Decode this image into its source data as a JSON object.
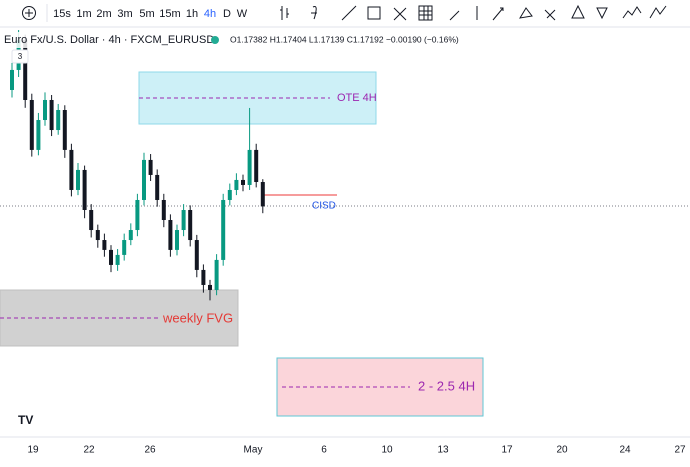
{
  "toolbar": {
    "timeframes": [
      "15s",
      "1m",
      "2m",
      "3m",
      "5m",
      "15m",
      "1h",
      "4h",
      "D",
      "W"
    ],
    "active": "4h"
  },
  "legend": {
    "symbol": "Euro Fx/U.S. Dollar · 4h · FXCM_EURUSD",
    "ohlc": "O1.17382 H1.17404 L1.17139 C1.17192 −0.00190 (−0.16%)",
    "badge": "3"
  },
  "chart_data": {
    "type": "candlestick",
    "open": [
      1.18099,
      1.18255,
      1.18488,
      1.18021,
      1.17632,
      1.17865,
      1.18021,
      1.17787,
      1.17943,
      1.17632,
      1.1732,
      1.17476,
      1.17164,
      1.17008,
      1.1693,
      1.16853,
      1.16736,
      1.16814,
      1.1693,
      1.17008,
      1.17242,
      1.17554,
      1.17437,
      1.17242,
      1.17086,
      1.16853,
      1.17008,
      1.17164,
      1.1693,
      1.16697,
      1.1658,
      1.16541,
      1.16775,
      1.17242,
      1.1732,
      1.17398,
      1.17359,
      1.17632,
      1.17382
    ],
    "high": [
      1.1831,
      1.18566,
      1.1853,
      1.1807,
      1.1792,
      1.1808,
      1.1806,
      1.1799,
      1.1798,
      1.1768,
      1.1753,
      1.1751,
      1.1721,
      1.1705,
      1.1698,
      1.1689,
      1.1686,
      1.1698,
      1.1706,
      1.1729,
      1.1761,
      1.176,
      1.1748,
      1.1729,
      1.1713,
      1.1705,
      1.1721,
      1.172,
      1.1697,
      1.1674,
      1.1662,
      1.1682,
      1.1729,
      1.1737,
      1.1745,
      1.1744,
      1.17959,
      1.1768,
      1.17404
    ],
    "low": [
      1.1804,
      1.182,
      1.1796,
      1.1758,
      1.1759,
      1.1782,
      1.1774,
      1.1775,
      1.1757,
      1.1727,
      1.1728,
      1.171,
      1.1695,
      1.1687,
      1.168,
      1.1668,
      1.1669,
      1.1677,
      1.1689,
      1.1696,
      1.172,
      1.1739,
      1.1719,
      1.1703,
      1.168,
      1.1681,
      1.1696,
      1.1688,
      1.1664,
      1.1652,
      1.1646,
      1.165,
      1.1673,
      1.172,
      1.1728,
      1.1731,
      1.1732,
      1.1734,
      1.17139
    ],
    "close": [
      1.18255,
      1.18488,
      1.18021,
      1.17632,
      1.17865,
      1.18021,
      1.17787,
      1.17943,
      1.17632,
      1.1732,
      1.17476,
      1.17164,
      1.17008,
      1.1693,
      1.16853,
      1.16736,
      1.16814,
      1.1693,
      1.17008,
      1.17242,
      1.17554,
      1.17437,
      1.17242,
      1.17086,
      1.16853,
      1.17008,
      1.17164,
      1.1693,
      1.16697,
      1.1658,
      1.16541,
      1.16775,
      1.17242,
      1.1732,
      1.17398,
      1.17359,
      1.17632,
      1.17382,
      1.17192
    ],
    "up_color": "#089981",
    "down_color": "#131722",
    "ylim": [
      1.1545,
      1.188
    ],
    "x_tick_labels": [
      "19",
      "22",
      "26",
      "May",
      "6",
      "10",
      "13",
      "17",
      "20",
      "24",
      "27"
    ],
    "annotations": {
      "ote": "OTE 4H",
      "cisd": "CISD",
      "fvg": "weekly FVG",
      "target": "2 - 2.5 4H"
    }
  }
}
